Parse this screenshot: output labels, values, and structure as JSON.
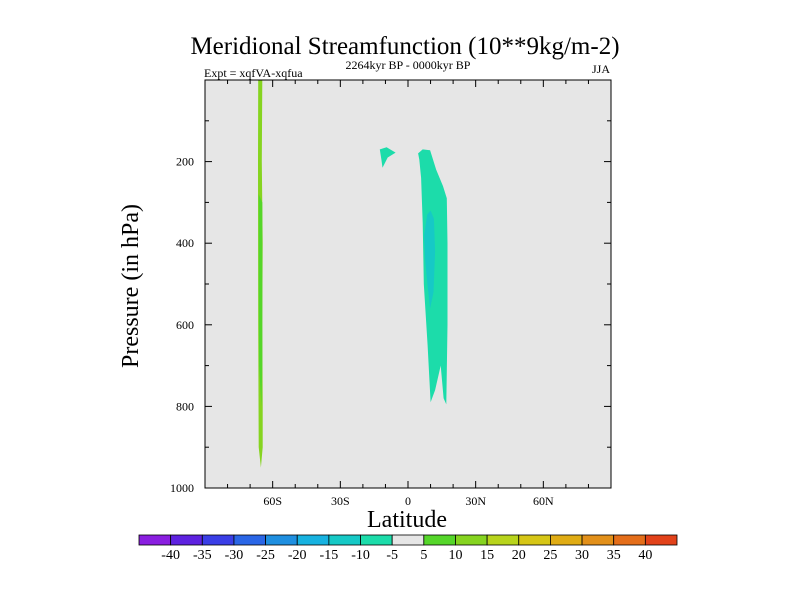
{
  "chart_data": {
    "type": "contour",
    "title": "Meridional Streamfunction (10**9kg/m-2)",
    "left_string": "Expt = xqfVA-xqfua",
    "center_string": "2264kyr BP - 0000kyr BP",
    "right_string": "JJA",
    "xlabel": "Latitude",
    "ylabel": "Pressure (in hPa)",
    "xlim": [
      -90,
      90
    ],
    "ylim": [
      0,
      1000
    ],
    "x_ticks": [
      {
        "value": -60,
        "label": "60S"
      },
      {
        "value": -30,
        "label": "30S"
      },
      {
        "value": 0,
        "label": "0"
      },
      {
        "value": 30,
        "label": "30N"
      },
      {
        "value": 60,
        "label": "60N"
      }
    ],
    "y_ticks": [
      {
        "value": 200,
        "label": "200"
      },
      {
        "value": 400,
        "label": "400"
      },
      {
        "value": 600,
        "label": "600"
      },
      {
        "value": 800,
        "label": "800"
      },
      {
        "value": 1000,
        "label": "1000"
      }
    ],
    "colorbar": {
      "levels": [
        "-40",
        "-35",
        "-30",
        "-25",
        "-20",
        "-15",
        "-10",
        "-5",
        "5",
        "10",
        "15",
        "20",
        "25",
        "30",
        "35",
        "40"
      ],
      "colors": [
        "#8a1ee0",
        "#5e22e0",
        "#3a3ee6",
        "#2a66e6",
        "#1f8fe0",
        "#17b2e0",
        "#16c9c6",
        "#1cdcaa",
        "#e6e6e6",
        "#55d62a",
        "#86d420",
        "#b8d41c",
        "#d6c616",
        "#e0ac14",
        "#e2901a",
        "#e46e1a",
        "#e2421a"
      ]
    },
    "regions": [
      {
        "name": "15-contour-60S",
        "level": "10 to 15",
        "color": "#86d420",
        "points": [
          [
            -66.4,
            0
          ],
          [
            -64.6,
            0
          ],
          [
            -64.8,
            200
          ],
          [
            -64.4,
            400
          ],
          [
            -64.6,
            600
          ],
          [
            -64.4,
            800
          ],
          [
            -64.4,
            900
          ],
          [
            -65.2,
            950
          ],
          [
            -66.2,
            900
          ],
          [
            -66.4,
            600
          ],
          [
            -66.5,
            200
          ]
        ]
      },
      {
        "name": "10-contour-60S",
        "level": "5 to 10",
        "color": "#55d62a",
        "points": [
          [
            -66.2,
            280
          ],
          [
            -64.6,
            300
          ],
          [
            -64.6,
            500
          ],
          [
            -64.6,
            700
          ],
          [
            -65.0,
            800
          ],
          [
            -66.0,
            700
          ],
          [
            -66.2,
            500
          ]
        ]
      },
      {
        "name": "neg5-contour-tropics",
        "level": "-10 to -5",
        "color": "#1cdcaa",
        "points": [
          [
            4.5,
            180
          ],
          [
            6.5,
            170
          ],
          [
            9.8,
            172
          ],
          [
            12.5,
            220
          ],
          [
            15.5,
            260
          ],
          [
            17.2,
            290
          ],
          [
            17.5,
            400
          ],
          [
            17.5,
            600
          ],
          [
            17.0,
            795
          ],
          [
            15.8,
            780
          ],
          [
            14.5,
            700
          ],
          [
            12.0,
            760
          ],
          [
            10.0,
            790
          ],
          [
            8.7,
            650
          ],
          [
            7.0,
            500
          ],
          [
            6.5,
            350
          ],
          [
            5.8,
            240
          ],
          [
            5.0,
            195
          ]
        ]
      },
      {
        "name": "neg10-contour-tropics",
        "level": "-15 to -10",
        "color": "#16c9c6",
        "points": [
          [
            7.2,
            380
          ],
          [
            8.5,
            330
          ],
          [
            10.0,
            320
          ],
          [
            11.5,
            340
          ],
          [
            12.0,
            420
          ],
          [
            11.3,
            520
          ],
          [
            9.8,
            560
          ],
          [
            8.6,
            500
          ],
          [
            7.6,
            440
          ]
        ]
      },
      {
        "name": "neg5-contour-10S",
        "level": "-10 to -5",
        "color": "#1cdcaa",
        "points": [
          [
            -12.5,
            170
          ],
          [
            -9.5,
            165
          ],
          [
            -5.5,
            178
          ],
          [
            -9.0,
            190
          ],
          [
            -11.3,
            215
          ],
          [
            -11.8,
            195
          ]
        ]
      }
    ]
  }
}
